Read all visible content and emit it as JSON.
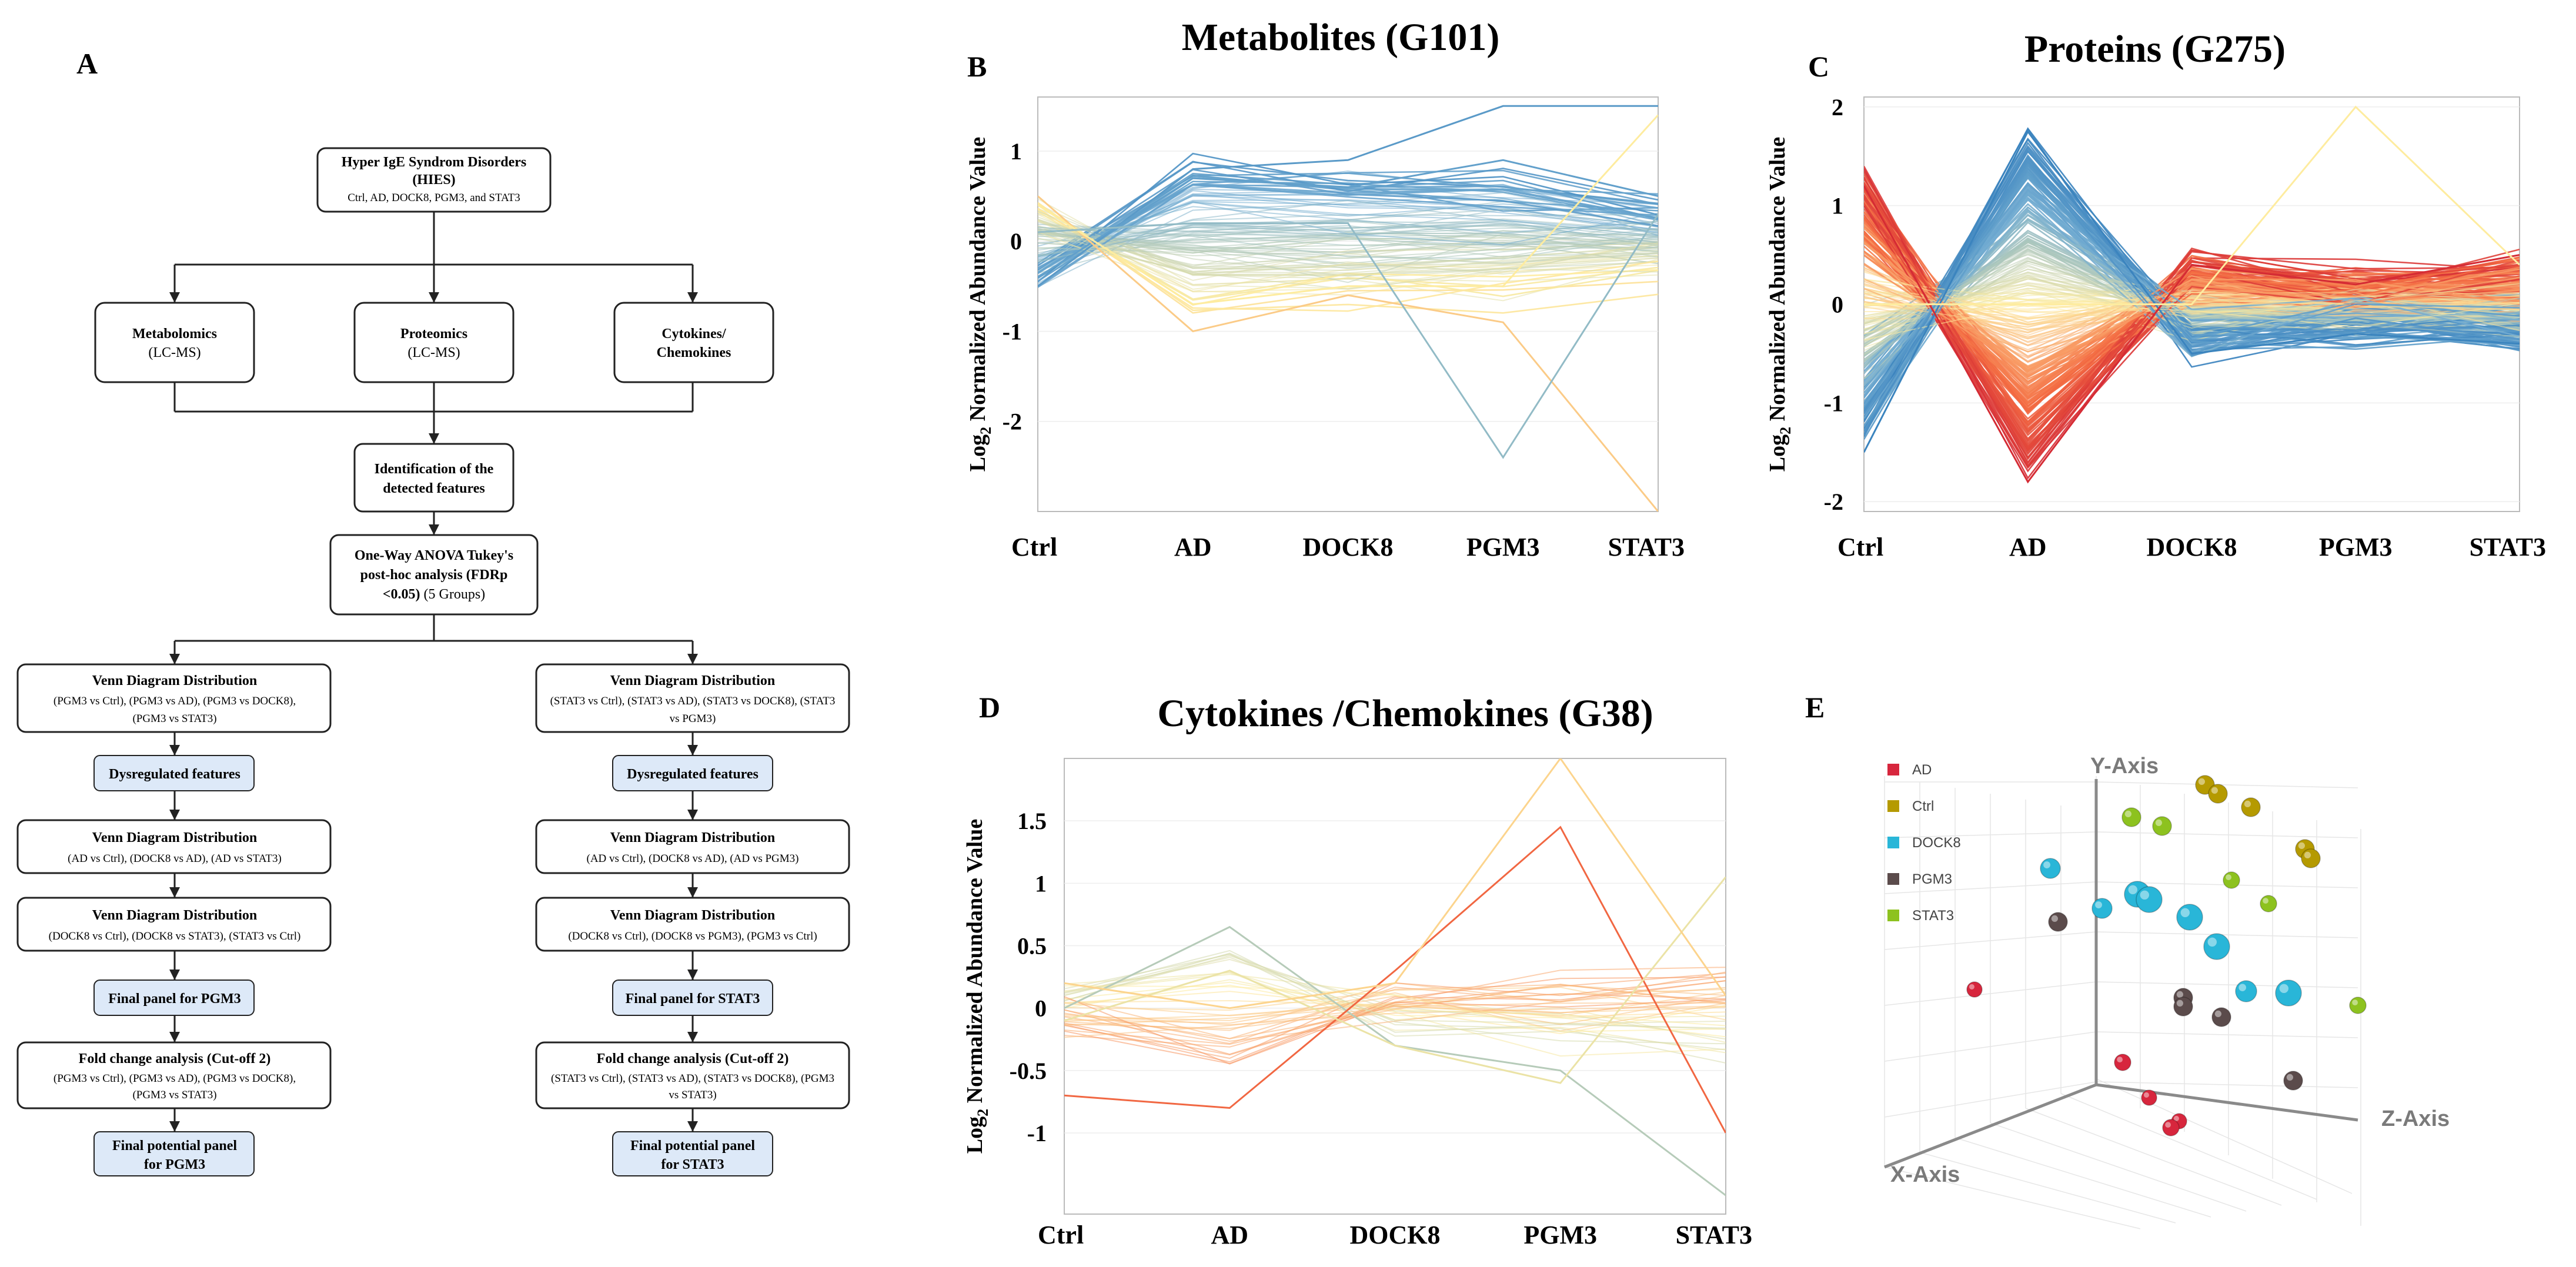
{
  "panel_labels": [
    "A",
    "B",
    "C",
    "D",
    "E"
  ],
  "flowchart": {
    "root": {
      "title": "Hyper IgE Syndrom Disorders",
      "subtitle": "(HIES)",
      "detail": "Ctrl, AD, DOCK8, PGM3, and STAT3"
    },
    "omics": [
      {
        "title": "Metabolomics",
        "detail": "(LC-MS)"
      },
      {
        "title": "Proteomics",
        "detail": "(LC-MS)"
      },
      {
        "title": "Cytokines/",
        "detail": "Chemokines"
      }
    ],
    "identification": {
      "line1": "Identification of the",
      "line2": "detected features"
    },
    "anova": {
      "line1": "One-Way ANOVA Tukey's",
      "line2": "post-hoc analysis (FDRp",
      "line3_bold": "<0.05)",
      "line3_rest": " (5 Groups)"
    },
    "left_branch": {
      "venn1_title": "Venn Diagram Distribution",
      "venn1_detail_1": "(PGM3 vs Ctrl), (PGM3 vs AD), (PGM3 vs DOCK8),",
      "venn1_detail_2": "(PGM3 vs STAT3)",
      "dysregulated": "Dysregulated features",
      "venn2_title": "Venn Diagram Distribution",
      "venn2_detail": "(AD vs Ctrl), (DOCK8 vs AD), (AD vs STAT3)",
      "venn3_title": "Venn Diagram Distribution",
      "venn3_detail": "(DOCK8 vs Ctrl), (DOCK8 vs STAT3), (STAT3 vs Ctrl)",
      "final_panel": "Final panel for PGM3",
      "fold_title": "Fold change analysis (Cut-off 2)",
      "fold_detail_1": "(PGM3 vs Ctrl), (PGM3 vs AD), (PGM3 vs DOCK8),",
      "fold_detail_2": "(PGM3 vs STAT3)",
      "potential_1": "Final potential panel",
      "potential_2": "for PGM3"
    },
    "right_branch": {
      "venn1_title": "Venn Diagram Distribution",
      "venn1_detail_1": "(STAT3 vs Ctrl), (STAT3 vs AD), (STAT3 vs DOCK8), (STAT3",
      "venn1_detail_2": "vs PGM3)",
      "dysregulated": "Dysregulated features",
      "venn2_title": "Venn Diagram Distribution",
      "venn2_detail": "(AD vs Ctrl), (DOCK8 vs AD), (AD vs PGM3)",
      "venn3_title": "Venn Diagram Distribution",
      "venn3_detail": "(DOCK8 vs Ctrl), (DOCK8 vs PGM3), (PGM3 vs Ctrl)",
      "final_panel": "Final panel for STAT3",
      "fold_title": "Fold change analysis (Cut-off 2)",
      "fold_detail_1": "(STAT3 vs Ctrl), (STAT3 vs AD), (STAT3 vs DOCK8), (PGM3",
      "fold_detail_2": "vs STAT3)",
      "potential_1": "Final potential panel",
      "potential_2": "for STAT3"
    }
  },
  "colors": {
    "box_blue": "#dde9f8",
    "box_border": "#222222",
    "axis": "#999999",
    "red": "#c8102e",
    "blue": "#1f6fb5"
  },
  "chart_data": [
    {
      "id": "B",
      "type": "line",
      "title": "Metabolites (G101)",
      "ylabel": "Log2 Normalized Abundance Value",
      "ylabel_main": "Log",
      "ylabel_sub": "2",
      "ylabel_rest": " Normalized Abundance Value",
      "categories": [
        "Ctrl",
        "AD",
        "DOCK8",
        "PGM3",
        "STAT3"
      ],
      "ylim": [
        -3,
        1.6
      ],
      "yticks": [
        -2,
        -1,
        0,
        1
      ],
      "series_count": 101,
      "representative_series": [
        {
          "name": "up-high",
          "values": [
            -0.5,
            0.8,
            0.9,
            1.5,
            1.5
          ]
        },
        {
          "name": "up-mid",
          "values": [
            -0.4,
            0.7,
            0.6,
            0.9,
            0.5
          ]
        },
        {
          "name": "down-low",
          "values": [
            0.5,
            -1.0,
            -0.6,
            -0.9,
            -3.0
          ]
        },
        {
          "name": "down-mid",
          "values": [
            0.4,
            -0.7,
            -0.5,
            -0.5,
            1.4
          ]
        },
        {
          "name": "mid-outlier",
          "values": [
            0.1,
            0.2,
            0.2,
            -2.4,
            0.3
          ]
        }
      ]
    },
    {
      "id": "C",
      "type": "line",
      "title": "Proteins (G275)",
      "ylabel": "Log2 Normalized Abundance Value",
      "ylabel_main": "Log",
      "ylabel_sub": "2",
      "ylabel_rest": " Normalized Abundance Value",
      "categories": [
        "Ctrl",
        "AD",
        "DOCK8",
        "PGM3",
        "STAT3"
      ],
      "ylim": [
        -2.1,
        2.1
      ],
      "yticks": [
        -2,
        -1,
        0,
        1,
        2
      ],
      "series_count": 275,
      "representative_series": [
        {
          "name": "ad-up",
          "values": [
            -1.5,
            1.75,
            -0.5,
            -0.3,
            -0.4
          ]
        },
        {
          "name": "ad-down",
          "values": [
            1.2,
            -1.8,
            0.4,
            0.2,
            0.5
          ]
        },
        {
          "name": "pgm3-peak",
          "values": [
            0.0,
            0.0,
            0.0,
            2.0,
            0.4
          ]
        }
      ]
    },
    {
      "id": "D",
      "type": "line",
      "title": "Cytokines /Chemokines (G38)",
      "ylabel": "Log2 Normalized Abundance Value",
      "ylabel_main": "Log",
      "ylabel_sub": "2",
      "ylabel_rest": " Normalized Abundance Value",
      "categories": [
        "Ctrl",
        "AD",
        "DOCK8",
        "PGM3",
        "STAT3"
      ],
      "ylim": [
        -1.65,
        2.0
      ],
      "yticks": [
        -1,
        -0.5,
        0,
        0.5,
        1,
        1.5
      ],
      "series_count": 38,
      "representative_series": [
        {
          "name": "ad-up",
          "values": [
            0.0,
            0.65,
            -0.3,
            -0.5,
            -1.5
          ]
        },
        {
          "name": "pgm3-up",
          "values": [
            -0.7,
            -0.8,
            0.3,
            1.45,
            -1.0
          ]
        },
        {
          "name": "stat3-up",
          "values": [
            -0.1,
            0.3,
            -0.3,
            -0.6,
            1.05
          ]
        },
        {
          "name": "pgm3-peak",
          "values": [
            0.2,
            0.0,
            0.2,
            2.0,
            0.1
          ]
        }
      ]
    },
    {
      "id": "E",
      "type": "scatter3d",
      "axis_labels": {
        "x": "X-Axis",
        "y": "Y-Axis",
        "z": "Z-Axis"
      },
      "legend": [
        {
          "label": "AD",
          "color": "#d7263d"
        },
        {
          "label": "Ctrl",
          "color": "#b59a00"
        },
        {
          "label": "DOCK8",
          "color": "#29b6d8"
        },
        {
          "label": "PGM3",
          "color": "#5b4b4b"
        },
        {
          "label": "STAT3",
          "color": "#8dc21f"
        }
      ]
    }
  ]
}
